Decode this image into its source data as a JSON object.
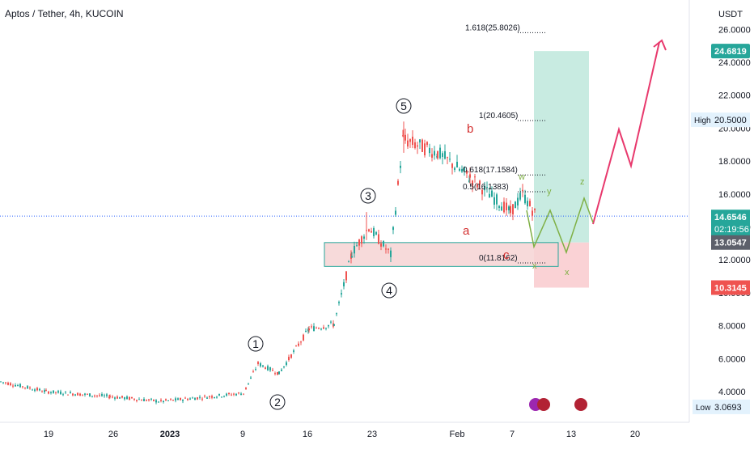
{
  "header": {
    "symbol_title": "Aptos / Tether, 4h, KUCOIN"
  },
  "axis": {
    "currency": "USDT",
    "y_ticks": [
      "4.0000",
      "6.0000",
      "8.0000",
      "10.0000",
      "12.0000",
      "14.0000",
      "16.0000",
      "18.0000",
      "20.0000",
      "22.0000",
      "24.0000",
      "26.0000"
    ],
    "x_ticks": [
      "19",
      "26",
      "2023",
      "9",
      "16",
      "23",
      "Feb",
      "7",
      "13",
      "20"
    ]
  },
  "price_labels": {
    "take_profit": "24.6819",
    "high_tag": "High",
    "high_value": "20.5000",
    "current_price": "14.6546",
    "countdown": "02:19:56",
    "entry": "13.0547",
    "stop_loss": "10.3145",
    "low_tag": "Low",
    "low_value": "3.0693"
  },
  "fib_labels": [
    "1.618(25.8026)",
    "1(20.4605)",
    "0.618(17.1584)",
    "0.5(16.1383)",
    "0(11.8162)"
  ],
  "elliott_labels": {
    "impulse": [
      "1",
      "2",
      "3",
      "4",
      "5"
    ],
    "corrective": [
      "a",
      "b",
      "c"
    ],
    "wxyxz": [
      "w",
      "x",
      "y",
      "x",
      "z"
    ]
  },
  "colors": {
    "up": "#26a69a",
    "down": "#ef5350",
    "tp_zone": "#c8ebe1",
    "sl_zone": "#fad2d5",
    "support_box": "#f6d3d3",
    "projection_pink": "#e8396d",
    "projection_green": "#7fb045",
    "price_line": "#2962ff"
  },
  "chart_data": {
    "type": "candlestick",
    "title": "Aptos / Tether, 4h, KUCOIN",
    "y_unit": "USDT",
    "ylim": [
      2.4,
      28.0
    ],
    "x_tick_labels": [
      "19",
      "26",
      "2023",
      "9",
      "16",
      "23",
      "Feb",
      "7",
      "13",
      "20"
    ],
    "price_path": [
      {
        "t": "Dec 12",
        "close": 4.6
      },
      {
        "t": "Dec 19",
        "close": 4.0
      },
      {
        "t": "Dec 26",
        "close": 3.7
      },
      {
        "t": "Jan 1",
        "close": 3.4
      },
      {
        "t": "Jan 9",
        "close": 3.9
      },
      {
        "t": "Jan 10",
        "close": 5.7
      },
      {
        "t": "Jan 12",
        "close": 5.1
      },
      {
        "t": "Jan 16",
        "close": 7.8
      },
      {
        "t": "Jan 20",
        "close": 8.1
      },
      {
        "t": "Jan 21",
        "close": 12.4
      },
      {
        "t": "Jan 23",
        "close": 14.0
      },
      {
        "t": "Jan 25",
        "close": 12.3
      },
      {
        "t": "Jan 26",
        "close": 19.3
      },
      {
        "t": "Jan 30",
        "close": 18.5
      },
      {
        "t": "Feb 2",
        "close": 17.0
      },
      {
        "t": "Feb 7",
        "close": 14.9
      },
      {
        "t": "Feb 8",
        "close": 16.0
      },
      {
        "t": "Feb 9",
        "close": 14.65
      }
    ],
    "series": [
      {
        "name": "High",
        "values": [
          20.5
        ]
      },
      {
        "name": "Low",
        "values": [
          3.0693
        ]
      }
    ],
    "levels": {
      "take_profit": 24.6819,
      "entry": 13.0547,
      "stop_loss": 10.3145,
      "current": 14.6546,
      "fib_1_618": 25.8026,
      "fib_1": 20.4605,
      "fib_0_618": 17.1584,
      "fib_0_5": 16.1383,
      "fib_0": 11.8162
    },
    "projection": [
      14.1,
      12.9,
      15.8,
      12.6,
      16.0,
      14.5,
      20.0,
      18.3,
      26.0
    ],
    "grid": false,
    "legend": "none"
  }
}
